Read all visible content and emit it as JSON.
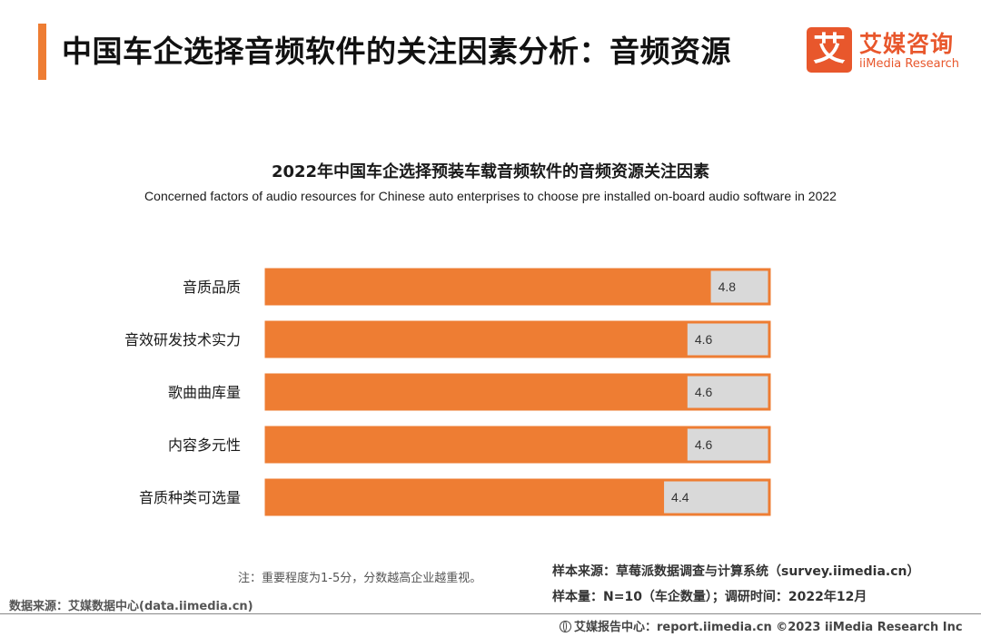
{
  "page": {
    "title": "中国车企选择音频软件的关注因素分析：音频资源",
    "logo_cn": "艾媒咨询",
    "logo_en": "iiMedia Research",
    "logo_mark": "艾"
  },
  "chart_data": {
    "type": "bar",
    "orientation": "horizontal",
    "title": "2022年中国车企选择预装车载音频软件的音频资源关注因素",
    "subtitle": "Concerned factors of audio resources for Chinese auto enterprises to choose pre installed on-board audio software in 2022",
    "categories": [
      "音质品质",
      "音效研发技术实力",
      "歌曲曲库量",
      "内容多元性",
      "音质种类可选量"
    ],
    "values": [
      4.8,
      4.6,
      4.6,
      4.6,
      4.4
    ],
    "scale": [
      1,
      5
    ],
    "colors": {
      "bar": "#ee7d33",
      "track": "#d9d9d9",
      "border": "#ee7d33"
    },
    "grid": false,
    "legend": "none"
  },
  "notes": {
    "scale_note": "注：重要程度为1-5分，分数越高企业越重视。",
    "data_source": "数据来源：艾媒数据中心(data.iimedia.cn)",
    "sample_source": "样本来源：草莓派数据调查与计算系统（survey.iimedia.cn）",
    "sample_size": "样本量：N=10（车企数量）；调研时间：2022年12月"
  },
  "footer": {
    "text": "艾媒报告中心：report.iimedia.cn  ©2023  iiMedia Research  Inc"
  }
}
